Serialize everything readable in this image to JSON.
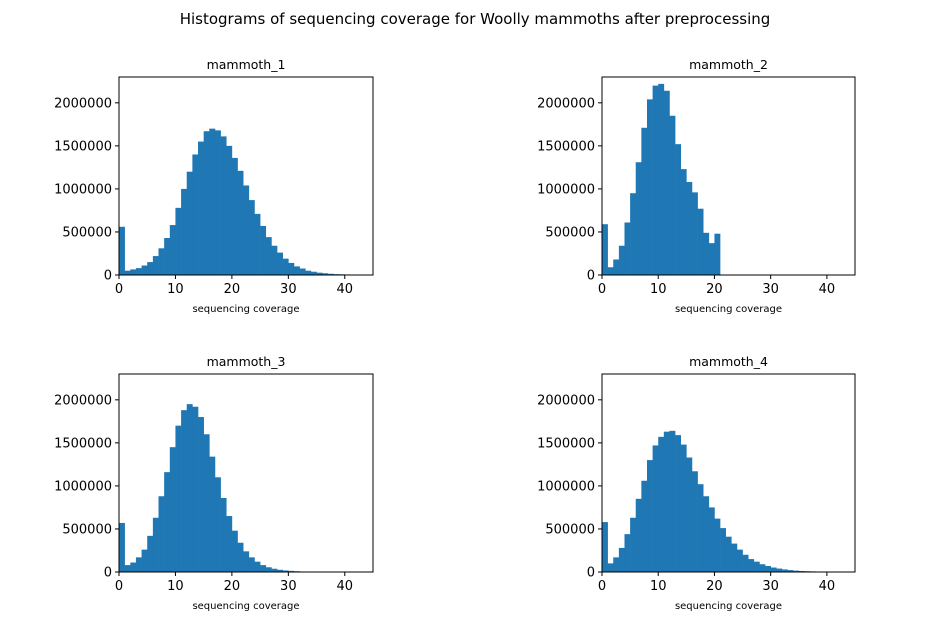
{
  "figure": {
    "title": "Histograms of sequencing coverage for Woolly mammoths after preprocessing"
  },
  "colors": {
    "bar": "#1f77b4",
    "axis": "#000000",
    "background": "#ffffff"
  },
  "chart_data": [
    {
      "type": "bar",
      "title": "mammoth_1",
      "xlabel": "sequencing coverage",
      "ylabel": "",
      "xlim": [
        0,
        45
      ],
      "ylim": [
        0,
        2300000
      ],
      "xticks": [
        0,
        10,
        20,
        30,
        40
      ],
      "yticks": [
        0,
        500000,
        1000000,
        1500000,
        2000000
      ],
      "bin_width": 1,
      "bin_start": 0,
      "values": [
        560000,
        50000,
        65000,
        80000,
        110000,
        150000,
        220000,
        310000,
        430000,
        580000,
        780000,
        1000000,
        1200000,
        1400000,
        1550000,
        1670000,
        1700000,
        1680000,
        1610000,
        1500000,
        1360000,
        1210000,
        1040000,
        870000,
        710000,
        570000,
        440000,
        340000,
        260000,
        190000,
        140000,
        100000,
        75000,
        50000,
        38000,
        27000,
        20000,
        14000,
        10000,
        8000,
        6000,
        4000,
        3000
      ]
    },
    {
      "type": "bar",
      "title": "mammoth_2",
      "xlabel": "sequencing coverage",
      "ylabel": "",
      "xlim": [
        0,
        45
      ],
      "ylim": [
        0,
        2300000
      ],
      "xticks": [
        0,
        10,
        20,
        30,
        40
      ],
      "yticks": [
        0,
        500000,
        1000000,
        1500000,
        2000000
      ],
      "bin_width": 1,
      "bin_start": 0,
      "values": [
        590000,
        90000,
        180000,
        340000,
        610000,
        950000,
        1310000,
        1710000,
        2040000,
        2200000,
        2220000,
        2140000,
        1850000,
        1520000,
        1230000,
        1080000,
        960000,
        770000,
        490000,
        370000,
        480000
      ]
    },
    {
      "type": "bar",
      "title": "mammoth_3",
      "xlabel": "sequencing coverage",
      "ylabel": "",
      "xlim": [
        0,
        45
      ],
      "ylim": [
        0,
        2300000
      ],
      "xticks": [
        0,
        10,
        20,
        30,
        40
      ],
      "yticks": [
        0,
        500000,
        1000000,
        1500000,
        2000000
      ],
      "bin_width": 1,
      "bin_start": 0,
      "values": [
        570000,
        80000,
        110000,
        170000,
        260000,
        420000,
        630000,
        880000,
        1160000,
        1450000,
        1700000,
        1880000,
        1950000,
        1920000,
        1800000,
        1600000,
        1340000,
        1100000,
        860000,
        650000,
        480000,
        340000,
        240000,
        170000,
        120000,
        80000,
        55000,
        38000,
        26000,
        18000,
        13000,
        9000,
        6000,
        4000,
        3000,
        2000,
        1500,
        1000,
        800,
        600,
        400,
        300,
        200
      ]
    },
    {
      "type": "bar",
      "title": "mammoth_4",
      "xlabel": "sequencing coverage",
      "ylabel": "",
      "xlim": [
        0,
        45
      ],
      "ylim": [
        0,
        2300000
      ],
      "xticks": [
        0,
        10,
        20,
        30,
        40
      ],
      "yticks": [
        0,
        500000,
        1000000,
        1500000,
        2000000
      ],
      "bin_width": 1,
      "bin_start": 0,
      "values": [
        580000,
        100000,
        170000,
        280000,
        440000,
        630000,
        850000,
        1060000,
        1300000,
        1470000,
        1570000,
        1630000,
        1640000,
        1590000,
        1480000,
        1330000,
        1170000,
        1020000,
        880000,
        750000,
        620000,
        510000,
        410000,
        330000,
        260000,
        200000,
        150000,
        120000,
        90000,
        70000,
        52000,
        40000,
        30000,
        22000,
        16000,
        12000,
        9000,
        7000,
        5000,
        4000,
        3000,
        2000,
        1500,
        1000,
        800
      ]
    }
  ]
}
